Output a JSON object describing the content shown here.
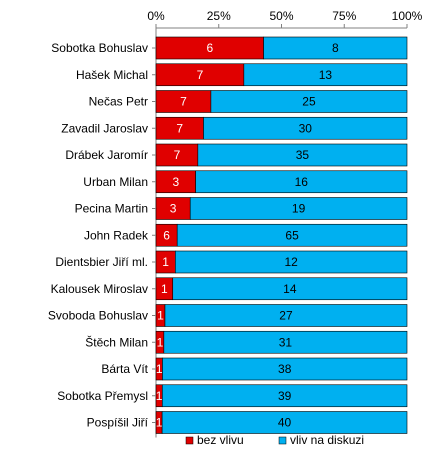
{
  "chart_data": {
    "type": "bar",
    "orientation": "horizontal",
    "stacked": "percent",
    "categories": [
      "Sobotka Bohuslav",
      "Hašek Michal",
      "Nečas Petr",
      "Zavadil Jaroslav",
      "Drábek Jaromír",
      "Urban Milan",
      "Pecina Martin",
      "John Radek",
      "Dientsbier Jiří ml.",
      "Kalousek Miroslav",
      "Svoboda Bohuslav",
      "Štěch Milan",
      "Bárta Vít",
      "Sobotka Přemysl",
      "Pospíšil Jiří"
    ],
    "series": [
      {
        "name": "bez vlivu",
        "color": "#e00000",
        "values": [
          6,
          7,
          7,
          7,
          7,
          3,
          3,
          6,
          1,
          1,
          1,
          1,
          1,
          1,
          1
        ]
      },
      {
        "name": "vliv na diskuzi",
        "color": "#00b0f0",
        "values": [
          8,
          13,
          25,
          30,
          35,
          16,
          19,
          65,
          12,
          14,
          27,
          31,
          38,
          39,
          40
        ]
      }
    ],
    "x_ticks": [
      "0%",
      "25%",
      "50%",
      "75%",
      "100%"
    ],
    "xlim": [
      0,
      100
    ],
    "grid": false,
    "legend_position": "bottom"
  }
}
